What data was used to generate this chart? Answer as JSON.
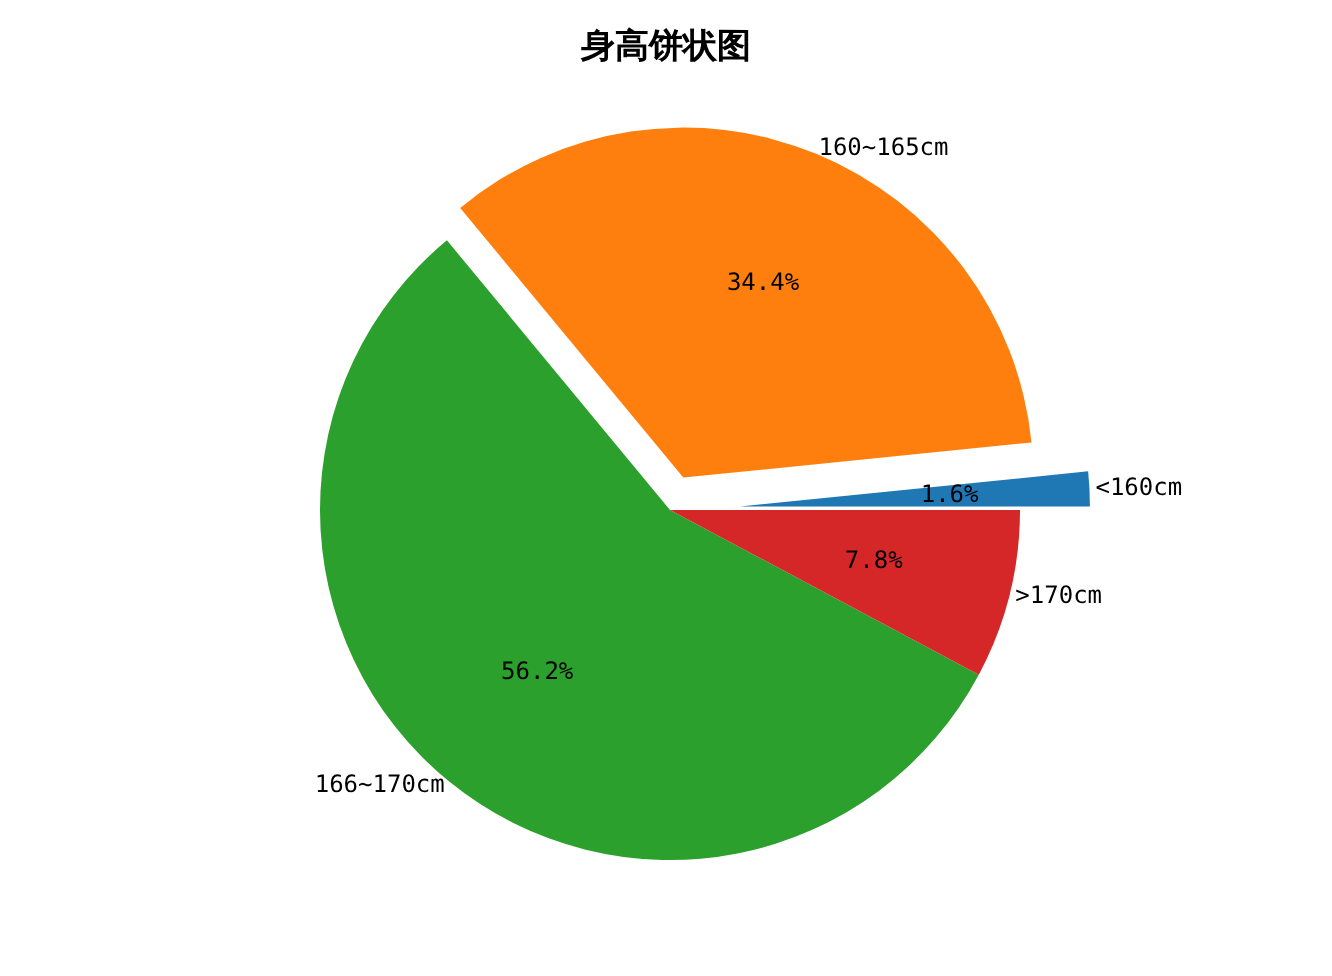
{
  "chart_data": {
    "type": "pie",
    "title": "身高饼状图",
    "categories": [
      "<160cm",
      "160~165cm",
      "166~170cm",
      ">170cm"
    ],
    "values": [
      1.6,
      34.4,
      56.2,
      7.8
    ],
    "colors": [
      "#1f77b4",
      "#ff7f0e",
      "#2ca02c",
      "#d62728"
    ],
    "value_labels": [
      "1.6%",
      "34.4%",
      "56.2%",
      "7.8%"
    ]
  }
}
